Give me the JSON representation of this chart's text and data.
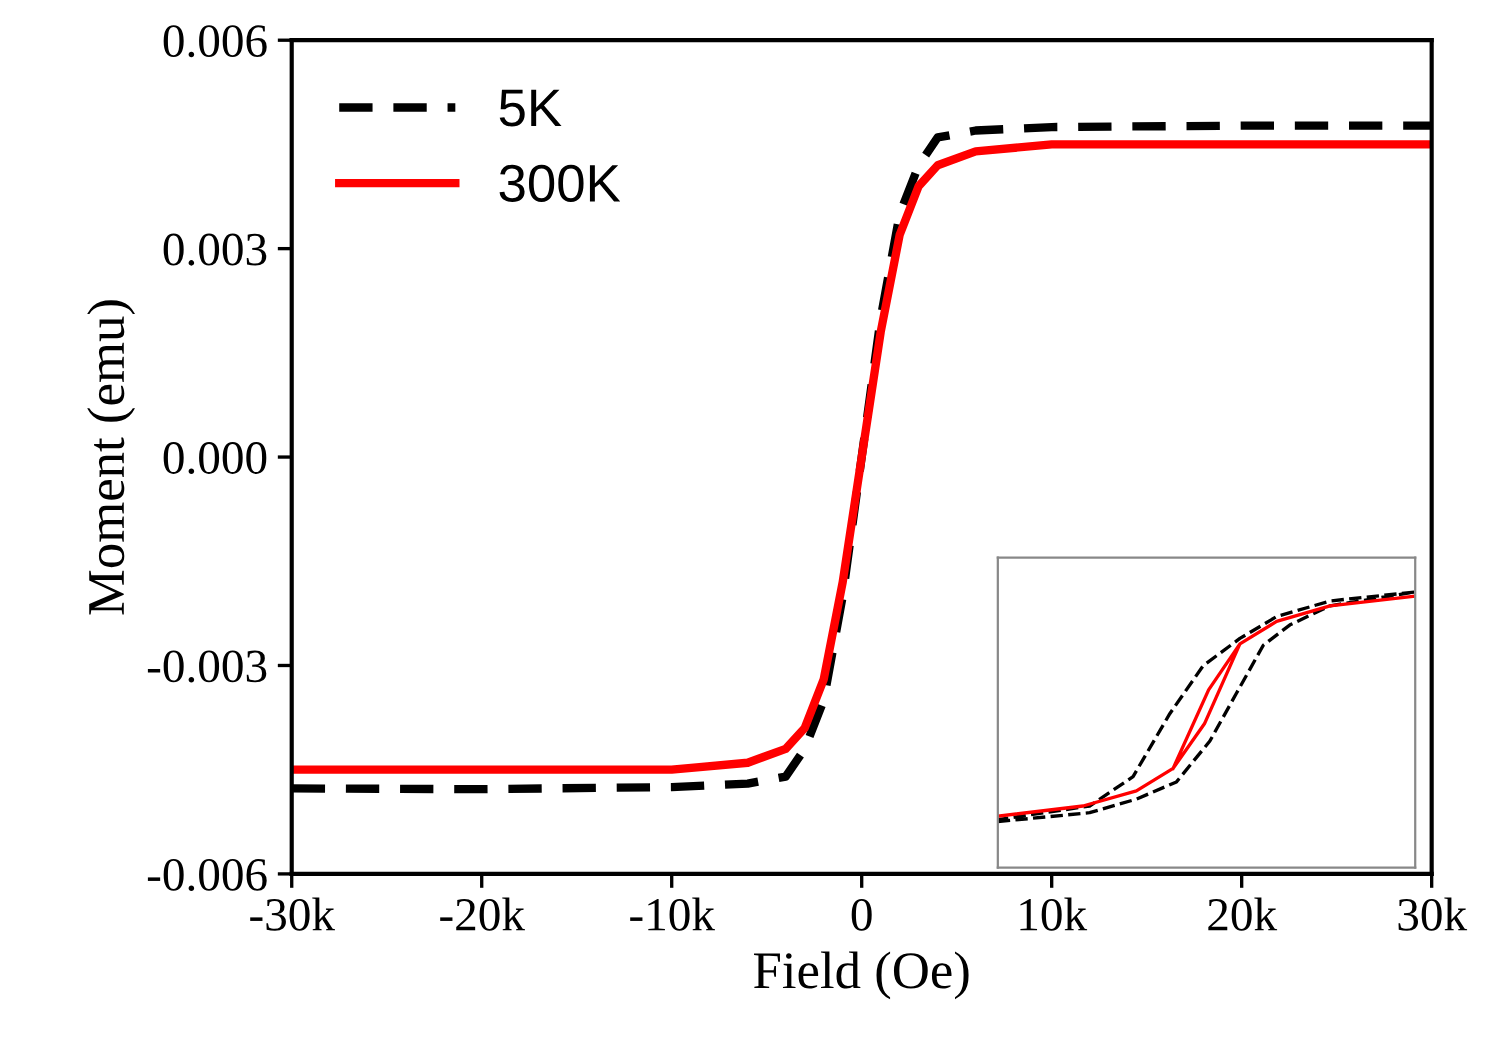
{
  "chart_data": {
    "type": "line",
    "xlabel": "Field (Oe)",
    "ylabel": "Moment (emu)",
    "x": [
      -30000,
      -20000,
      -10000,
      -6000,
      -4000,
      -3000,
      -2000,
      -1000,
      0,
      1000,
      2000,
      3000,
      4000,
      6000,
      10000,
      20000,
      30000
    ],
    "series": [
      {
        "name": "5K",
        "color": "#000000",
        "line_style": "dashed",
        "values": [
          -0.00477,
          -0.00478,
          -0.00475,
          -0.0047,
          -0.0046,
          -0.0042,
          -0.0035,
          -0.002,
          0,
          0.002,
          0.0035,
          0.0042,
          0.0046,
          0.0047,
          0.00475,
          0.00477,
          0.00477
        ]
      },
      {
        "name": "300K",
        "color": "#ff0000",
        "line_style": "solid",
        "values": [
          -0.0045,
          -0.0045,
          -0.0045,
          -0.0044,
          -0.0042,
          -0.0039,
          -0.0032,
          -0.0018,
          0,
          0.0018,
          0.0032,
          0.0039,
          0.0042,
          0.0044,
          0.0045,
          0.0045,
          0.0045
        ]
      }
    ],
    "xlim": [
      -30000,
      30000
    ],
    "xticks": [
      {
        "value": -30000,
        "label": "-30k"
      },
      {
        "value": -20000,
        "label": "-20k"
      },
      {
        "value": -10000,
        "label": "-10k"
      },
      0,
      {
        "value": 10000,
        "label": "10k"
      },
      {
        "value": 20000,
        "label": "20k"
      },
      {
        "value": 30000,
        "label": "30k"
      }
    ],
    "ylim": [
      -0.006,
      0.006
    ],
    "yticks": [
      {
        "value": -0.006,
        "label": "-0.006"
      },
      {
        "value": -0.003,
        "label": "-0.003"
      },
      {
        "value": 0,
        "label": "0.000"
      },
      {
        "value": 0.003,
        "label": "0.003"
      },
      {
        "value": 0.006,
        "label": "0.006"
      }
    ],
    "legend": "top left",
    "grid": false
  }
}
